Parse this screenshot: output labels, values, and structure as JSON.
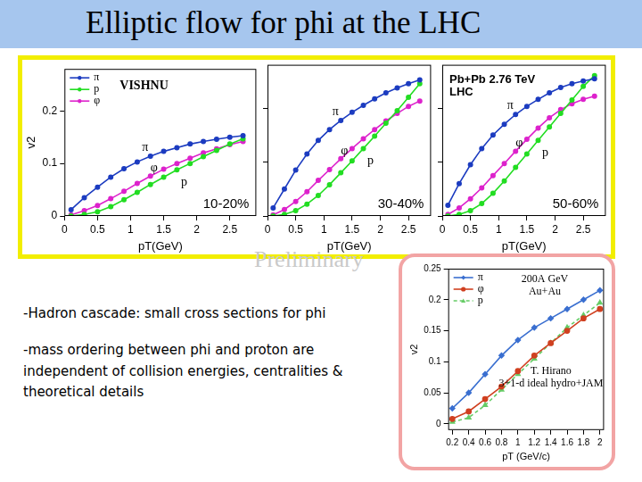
{
  "title": "Elliptic flow for phi at the LHC",
  "watermark": "Preliminary",
  "notes": [
    "-Hadron cascade: small cross sections for phi",
    "-mass ordering between phi and proton are independent of collision energies, centralities & theoretical details"
  ],
  "chart_data": [
    {
      "type": "line",
      "title": "10-20%",
      "x_label": "pT(GeV)",
      "y_label": "v2",
      "x": [
        0.1,
        0.3,
        0.5,
        0.7,
        0.9,
        1.1,
        1.3,
        1.5,
        1.7,
        1.9,
        2.1,
        2.3,
        2.5,
        2.7
      ],
      "series": [
        {
          "name": "π",
          "color": "#1c3cc0",
          "marker": "circle",
          "line_style": "solid",
          "values": [
            0.012,
            0.035,
            0.055,
            0.074,
            0.09,
            0.103,
            0.114,
            0.123,
            0.13,
            0.137,
            0.142,
            0.146,
            0.15,
            0.153
          ]
        },
        {
          "name": "p",
          "color": "#22dd22",
          "marker": "circle",
          "line_style": "solid",
          "values": [
            0,
            0.003,
            0.008,
            0.018,
            0.031,
            0.045,
            0.06,
            0.074,
            0.088,
            0.1,
            0.113,
            0.125,
            0.137,
            0.147
          ]
        },
        {
          "name": "φ",
          "color": "#dd22cc",
          "marker": "circle",
          "line_style": "solid",
          "values": [
            0.002,
            0.01,
            0.02,
            0.033,
            0.047,
            0.062,
            0.076,
            0.089,
            0.1,
            0.11,
            0.12,
            0.128,
            0.136,
            0.142
          ]
        }
      ],
      "xlim": [
        0,
        2.9
      ],
      "xticks": [
        0,
        0.5,
        1,
        1.5,
        2,
        2.5
      ],
      "ylim": [
        0,
        0.28
      ],
      "yticks": [
        0,
        0.1,
        0.2
      ],
      "grid": false,
      "legend": "upper left",
      "annotations": [
        [
          "VISHNU"
        ]
      ]
    },
    {
      "type": "line",
      "title": "30-40%",
      "x_label": "pT(GeV)",
      "x": [
        0.1,
        0.3,
        0.5,
        0.7,
        0.9,
        1.1,
        1.3,
        1.5,
        1.7,
        1.9,
        2.1,
        2.3,
        2.5,
        2.7
      ],
      "series": [
        {
          "name": "π",
          "color": "#1c3cc0",
          "marker": "circle",
          "line_style": "solid",
          "values": [
            0.015,
            0.05,
            0.085,
            0.115,
            0.14,
            0.16,
            0.177,
            0.192,
            0.205,
            0.217,
            0.228,
            0.237,
            0.245,
            0.252
          ]
        },
        {
          "name": "p",
          "color": "#22dd22",
          "marker": "circle",
          "line_style": "solid",
          "values": [
            0,
            0.003,
            0.01,
            0.022,
            0.038,
            0.058,
            0.08,
            0.102,
            0.125,
            0.148,
            0.172,
            0.195,
            0.22,
            0.245
          ]
        },
        {
          "name": "φ",
          "color": "#dd22cc",
          "marker": "circle",
          "line_style": "solid",
          "values": [
            0.002,
            0.012,
            0.027,
            0.045,
            0.066,
            0.086,
            0.106,
            0.125,
            0.143,
            0.16,
            0.176,
            0.19,
            0.203,
            0.213
          ]
        }
      ],
      "xlim": [
        0,
        2.9
      ],
      "xticks": [
        0,
        0.5,
        1,
        1.5,
        2,
        2.5
      ],
      "ylim": [
        0,
        0.28
      ],
      "yticks": [
        0,
        0.1,
        0.2
      ],
      "grid": false,
      "tick_labels": "x"
    },
    {
      "type": "line",
      "title": "50-60%",
      "x_label": "pT(GeV)",
      "x": [
        0.1,
        0.3,
        0.5,
        0.7,
        0.9,
        1.1,
        1.3,
        1.5,
        1.7,
        1.9,
        2.1,
        2.3,
        2.5,
        2.7
      ],
      "series": [
        {
          "name": "π",
          "color": "#1c3cc0",
          "marker": "circle",
          "line_style": "solid",
          "values": [
            0.02,
            0.06,
            0.095,
            0.125,
            0.15,
            0.17,
            0.188,
            0.203,
            0.216,
            0.228,
            0.238,
            0.245,
            0.25,
            0.254
          ]
        },
        {
          "name": "p",
          "color": "#22dd22",
          "marker": "circle",
          "line_style": "solid",
          "values": [
            0,
            0.003,
            0.01,
            0.023,
            0.042,
            0.065,
            0.09,
            0.115,
            0.14,
            0.165,
            0.19,
            0.215,
            0.24,
            0.26
          ]
        },
        {
          "name": "φ",
          "color": "#dd22cc",
          "marker": "circle",
          "line_style": "solid",
          "values": [
            0.003,
            0.015,
            0.032,
            0.052,
            0.075,
            0.097,
            0.12,
            0.142,
            0.163,
            0.182,
            0.197,
            0.208,
            0.216,
            0.222
          ]
        }
      ],
      "xlim": [
        0,
        2.9
      ],
      "xticks": [
        0,
        0.5,
        1,
        1.5,
        2,
        2.5
      ],
      "ylim": [
        0,
        0.28
      ],
      "yticks": [
        0,
        0.1,
        0.2
      ],
      "grid": false,
      "tick_labels": "x",
      "annotations": [
        [
          "Pb+Pb 2.76 TeV",
          "LHC"
        ]
      ]
    },
    {
      "type": "line",
      "x_label": "pT (GeV/c)",
      "y_label": "v2",
      "x": [
        0.2,
        0.4,
        0.6,
        0.8,
        1,
        1.2,
        1.4,
        1.6,
        1.8,
        2
      ],
      "series": [
        {
          "name": "π",
          "color": "#3a6fd0",
          "marker": "diamond",
          "line_style": "solid",
          "values": [
            0.025,
            0.05,
            0.08,
            0.11,
            0.135,
            0.155,
            0.17,
            0.185,
            0.2,
            0.215
          ]
        },
        {
          "name": "φ",
          "color": "#d04020",
          "marker": "circle",
          "line_style": "solid",
          "values": [
            0.008,
            0.02,
            0.04,
            0.06,
            0.085,
            0.11,
            0.13,
            0.15,
            0.17,
            0.185
          ]
        },
        {
          "name": "p",
          "color": "#66cc66",
          "marker": "triangle",
          "line_style": "dashed",
          "values": [
            0.003,
            0.01,
            0.03,
            0.055,
            0.08,
            0.105,
            0.13,
            0.155,
            0.175,
            0.195
          ]
        }
      ],
      "xlim": [
        0.15,
        2.05
      ],
      "xticks": [
        0.2,
        0.4,
        0.6,
        0.8,
        1,
        1.2,
        1.4,
        1.6,
        1.8,
        2
      ],
      "ylim": [
        -0.01,
        0.25
      ],
      "yticks": [
        0,
        0.05,
        0.1,
        0.15,
        0.2,
        0.25
      ],
      "grid": false,
      "legend": "upper left",
      "annotations": [
        [
          "200A GeV",
          "Au+Au"
        ],
        [
          "T. Hirano",
          "3+1-d ideal hydro+JAM"
        ]
      ]
    }
  ]
}
